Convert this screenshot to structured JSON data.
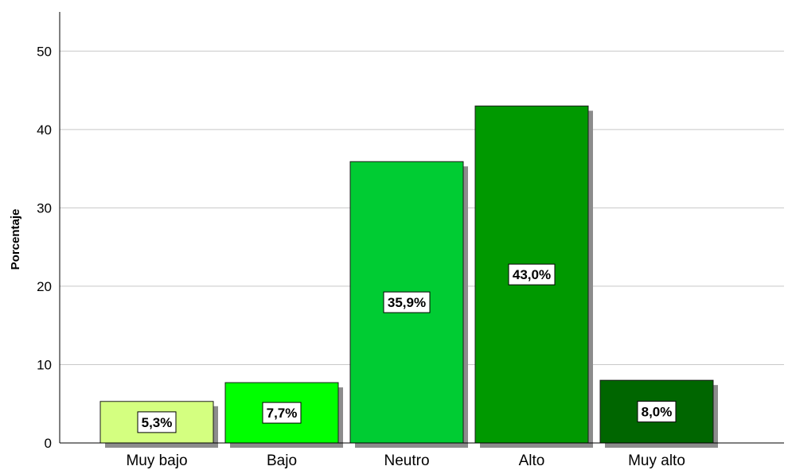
{
  "chart_data": {
    "type": "bar",
    "categories": [
      "Muy bajo",
      "Bajo",
      "Neutro",
      "Alto",
      "Muy alto"
    ],
    "values": [
      5.3,
      7.7,
      35.9,
      43.0,
      8.0
    ],
    "data_labels": [
      "5,3%",
      "7,7%",
      "35,9%",
      "43,0%",
      "8,0%"
    ],
    "colors": [
      "#d4ff80",
      "#00ff00",
      "#00cc33",
      "#009900",
      "#006600"
    ],
    "title": "",
    "xlabel": "",
    "ylabel": "Porcentaje",
    "ylim": [
      0,
      55
    ],
    "yticks": [
      0,
      10,
      20,
      30,
      40,
      50
    ],
    "grid": true,
    "legend": "none"
  }
}
